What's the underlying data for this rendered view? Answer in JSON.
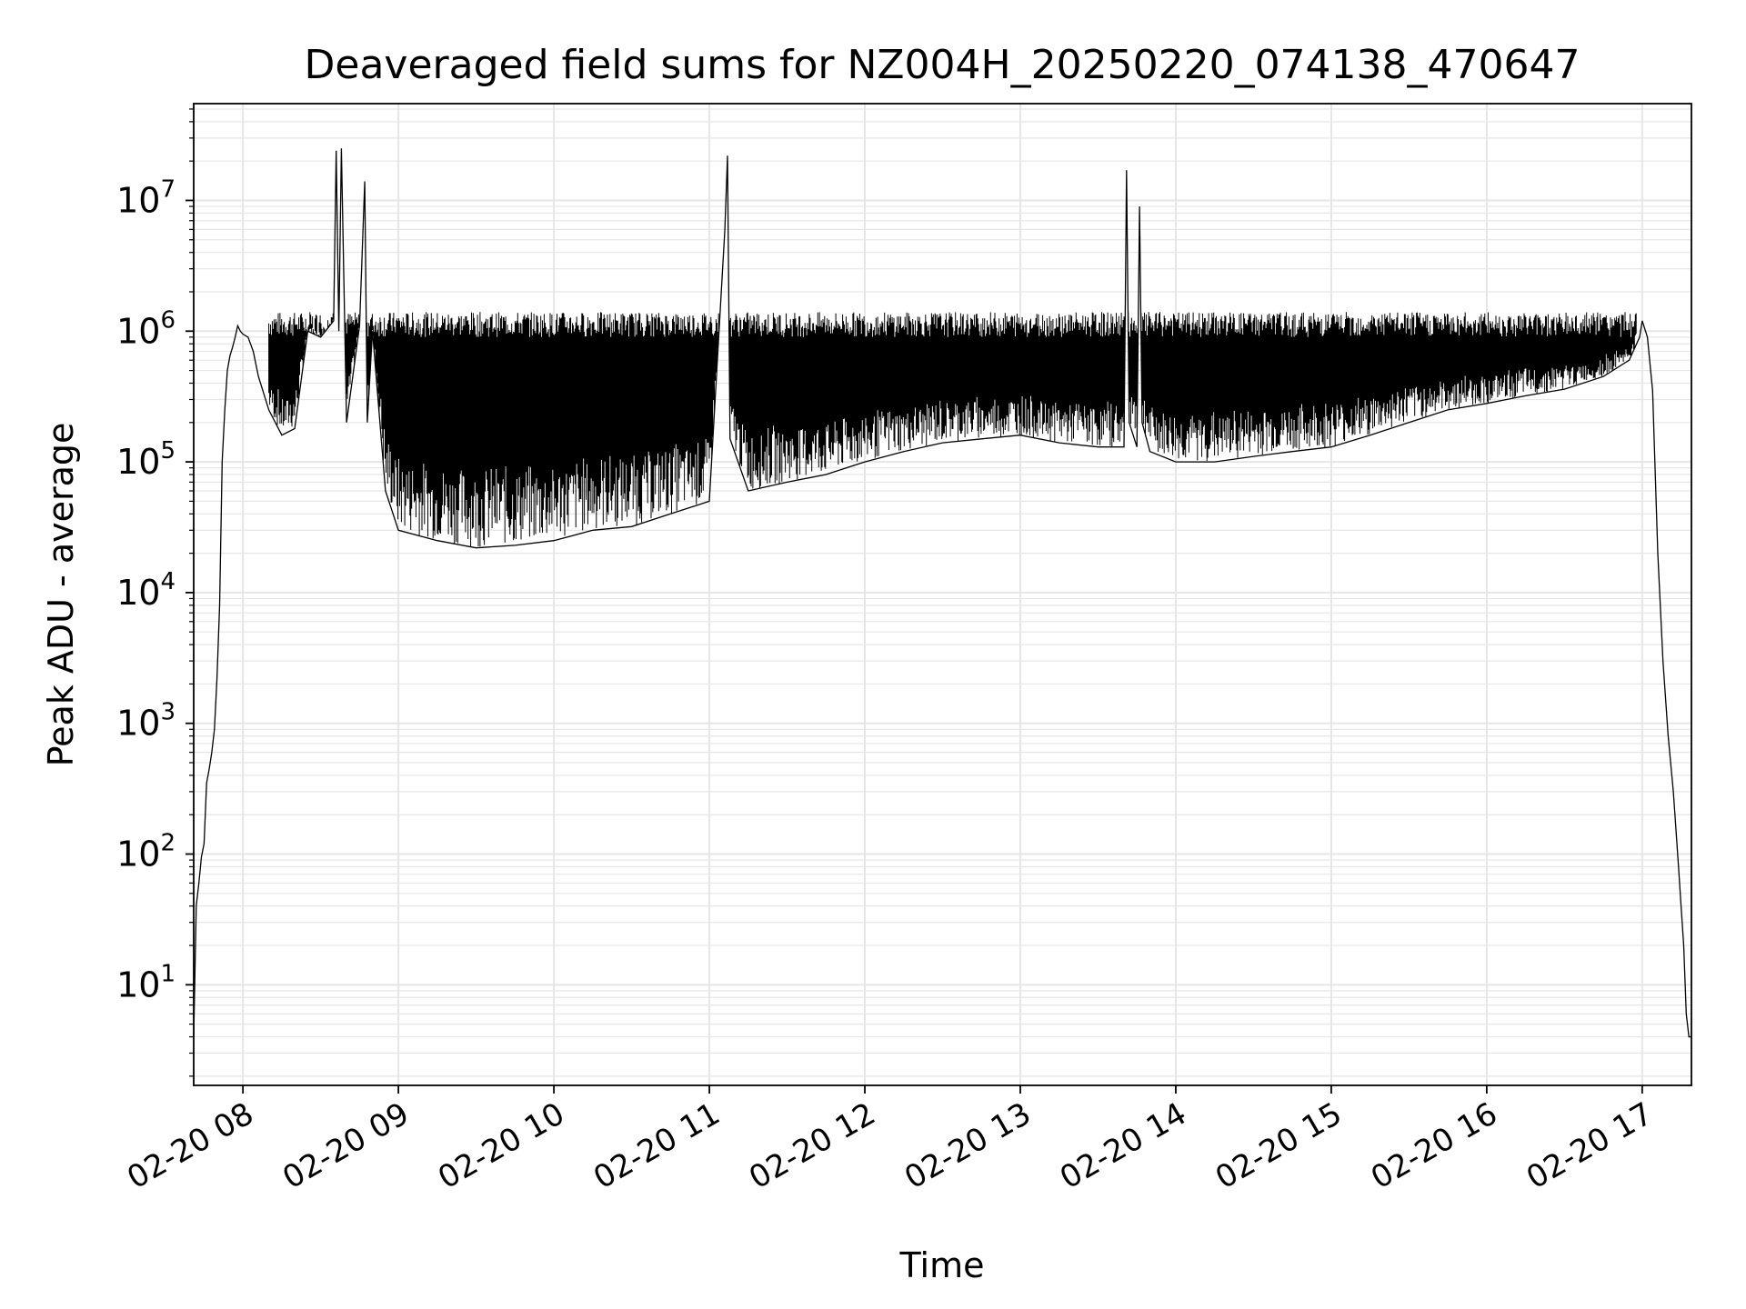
{
  "chart_data": {
    "type": "line",
    "title": "Deaveraged field sums for NZ004H_20250220_074138_470647",
    "xlabel": "Time",
    "ylabel": "Peak ADU - average",
    "yscale": "log",
    "ylim": [
      1.7,
      55000000
    ],
    "xlim": [
      "02-20 07:41",
      "02-20 17:19"
    ],
    "grid": true,
    "legend": "none",
    "line_color": "#000000",
    "grid_color": "#e6e6e6",
    "x_ticks": [
      "02-20 08",
      "02-20 09",
      "02-20 10",
      "02-20 11",
      "02-20 12",
      "02-20 13",
      "02-20 14",
      "02-20 15",
      "02-20 16",
      "02-20 17"
    ],
    "y_ticks": [
      {
        "value": 10,
        "base": "10",
        "exp": "1"
      },
      {
        "value": 100,
        "base": "10",
        "exp": "2"
      },
      {
        "value": 1000,
        "base": "10",
        "exp": "3"
      },
      {
        "value": 10000,
        "base": "10",
        "exp": "4"
      },
      {
        "value": 100000,
        "base": "10",
        "exp": "5"
      },
      {
        "value": 1000000,
        "base": "10",
        "exp": "6"
      },
      {
        "value": 10000000,
        "base": "10",
        "exp": "7"
      }
    ],
    "series": [
      {
        "x": [
          "02-20 07:41",
          "02-20 07:42",
          "02-20 07:43",
          "02-20 07:44",
          "02-20 07:45",
          "02-20 07:46",
          "02-20 07:47",
          "02-20 07:48",
          "02-20 07:49",
          "02-20 07:50",
          "02-20 07:51",
          "02-20 07:52",
          "02-20 07:53",
          "02-20 07:54",
          "02-20 07:55",
          "02-20 07:56",
          "02-20 07:57",
          "02-20 07:58",
          "02-20 07:59",
          "02-20 08:00",
          "02-20 08:02",
          "02-20 08:04",
          "02-20 08:06",
          "02-20 08:10",
          "02-20 08:15",
          "02-20 08:20",
          "02-20 08:25",
          "02-20 08:30",
          "02-20 08:35",
          "02-20 08:36",
          "02-20 08:37",
          "02-20 08:38",
          "02-20 08:40",
          "02-20 08:45",
          "02-20 08:47",
          "02-20 08:48",
          "02-20 08:50",
          "02-20 08:55",
          "02-20 09:00",
          "02-20 09:15",
          "02-20 09:30",
          "02-20 09:45",
          "02-20 10:00",
          "02-20 10:15",
          "02-20 10:30",
          "02-20 10:45",
          "02-20 11:00",
          "02-20 11:06",
          "02-20 11:07",
          "02-20 11:08",
          "02-20 11:15",
          "02-20 11:30",
          "02-20 11:45",
          "02-20 12:00",
          "02-20 12:15",
          "02-20 12:30",
          "02-20 12:45",
          "02-20 13:00",
          "02-20 13:15",
          "02-20 13:30",
          "02-20 13:40",
          "02-20 13:41",
          "02-20 13:42",
          "02-20 13:45",
          "02-20 13:46",
          "02-20 13:47",
          "02-20 13:50",
          "02-20 14:00",
          "02-20 14:15",
          "02-20 14:30",
          "02-20 14:45",
          "02-20 15:00",
          "02-20 15:15",
          "02-20 15:30",
          "02-20 15:45",
          "02-20 16:00",
          "02-20 16:15",
          "02-20 16:30",
          "02-20 16:45",
          "02-20 16:55",
          "02-20 16:59",
          "02-20 17:00",
          "02-20 17:02",
          "02-20 17:04",
          "02-20 17:06",
          "02-20 17:08",
          "02-20 17:10",
          "02-20 17:12",
          "02-20 17:14",
          "02-20 17:15",
          "02-20 17:16",
          "02-20 17:17",
          "02-20 17:18",
          "02-20 17:19"
        ],
        "y": [
          4,
          40,
          60,
          95,
          120,
          350,
          450,
          600,
          900,
          2200,
          8000,
          100000,
          250000,
          500000,
          650000,
          750000,
          900000,
          1100000,
          1000000,
          950000,
          900000,
          700000,
          450000,
          250000,
          160000,
          180000,
          1000000,
          900000,
          1200000,
          24000000,
          1000000,
          25000000,
          200000,
          1100000,
          14000000,
          200000,
          1000000,
          60000,
          30000,
          25000,
          22000,
          23000,
          25000,
          30000,
          32000,
          40000,
          50000,
          6000000,
          22000000,
          150000,
          60000,
          70000,
          80000,
          100000,
          120000,
          140000,
          150000,
          160000,
          140000,
          130000,
          130000,
          17000000,
          200000,
          130000,
          9000000,
          200000,
          120000,
          100000,
          100000,
          110000,
          120000,
          130000,
          160000,
          200000,
          250000,
          280000,
          320000,
          360000,
          450000,
          600000,
          900000,
          1200000,
          900000,
          350000,
          20000,
          3000,
          800,
          300,
          80,
          40,
          20,
          6,
          4,
          4
        ]
      }
    ]
  }
}
